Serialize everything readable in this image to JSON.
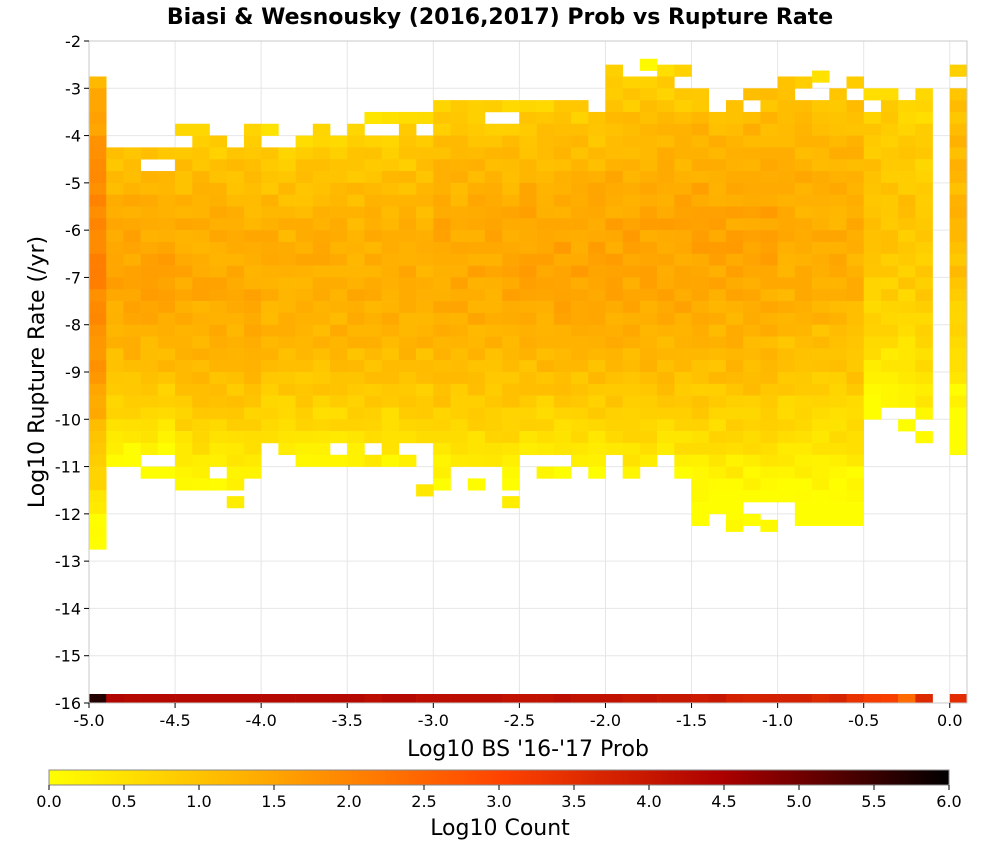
{
  "chart_data": {
    "type": "heatmap",
    "title": "Biasi & Wesnousky (2016,2017) Prob vs Rupture Rate",
    "xlabel": "Log10 BS '16-'17 Prob",
    "ylabel": "Log10 Rupture Rate (/yr)",
    "xlim": [
      -5.0,
      0.1
    ],
    "ylim": [
      -16,
      -2
    ],
    "xticks": [
      "-5.0",
      "-4.5",
      "-4.0",
      "-3.5",
      "-3.0",
      "-2.5",
      "-2.0",
      "-1.5",
      "-1.0",
      "-0.5",
      "0.0"
    ],
    "yticks": [
      "-2",
      "-3",
      "-4",
      "-5",
      "-6",
      "-7",
      "-8",
      "-9",
      "-10",
      "-11",
      "-12",
      "-13",
      "-14",
      "-15",
      "-16"
    ],
    "grid": true,
    "bin_width_x": 0.1,
    "bin_height_y": 0.25,
    "colorbar": {
      "label": "Log10 Count",
      "range": [
        0.0,
        6.0
      ],
      "ticks": [
        "0.0",
        "0.5",
        "1.0",
        "1.5",
        "2.0",
        "2.5",
        "3.0",
        "3.5",
        "4.0",
        "4.5",
        "5.0",
        "5.5",
        "6.0"
      ],
      "colors": [
        "#ffff00",
        "#ffa500",
        "#ff4400",
        "#aa0000",
        "#000000"
      ]
    },
    "zero_row": {
      "y": -16,
      "x_bins": [
        -4.95,
        -4.85,
        -4.75,
        -4.65,
        -4.55,
        -4.45,
        -4.35,
        -4.25,
        -4.15,
        -4.05,
        -3.95,
        -3.85,
        -3.75,
        -3.65,
        -3.55,
        -3.45,
        -3.35,
        -3.25,
        -3.15,
        -3.05,
        -2.95,
        -2.85,
        -2.75,
        -2.65,
        -2.55,
        -2.45,
        -2.35,
        -2.25,
        -2.15,
        -2.05,
        -1.95,
        -1.85,
        -1.75,
        -1.65,
        -1.55,
        -1.45,
        -1.35,
        -1.25,
        -1.15,
        -1.05,
        -0.95,
        -0.85,
        -0.75,
        -0.65,
        -0.55,
        -0.45,
        -0.35,
        -0.25,
        -0.15,
        0.05
      ],
      "values": [
        5.7,
        4.4,
        4.3,
        4.3,
        4.3,
        4.3,
        4.3,
        4.3,
        4.3,
        4.3,
        4.3,
        4.3,
        4.3,
        4.3,
        4.3,
        4.3,
        4.2,
        4.3,
        4.3,
        4.2,
        4.2,
        4.2,
        4.2,
        4.2,
        4.1,
        4.1,
        4.1,
        4.2,
        4.1,
        4.1,
        4.1,
        4.0,
        4.1,
        4.0,
        4.0,
        3.9,
        4.0,
        3.8,
        3.7,
        3.8,
        3.8,
        3.8,
        3.6,
        3.7,
        3.4,
        3.2,
        3.1,
        2.4,
        3.6,
        3.5
      ]
    },
    "profile": [
      {
        "x_from": -5.0,
        "x_to": -4.9,
        "y_min": -12.75,
        "y_max": -2.75,
        "peak_y": -6.5,
        "peak": 2.0
      },
      {
        "x_from": -4.9,
        "x_to": -4.5,
        "y_min": -11.25,
        "y_max": -4.25,
        "peak_y": -6.8,
        "peak": 1.5
      },
      {
        "x_from": -4.5,
        "x_to": -4.0,
        "y_min": -11.5,
        "y_max": -3.75,
        "peak_y": -7.0,
        "peak": 1.4
      },
      {
        "x_from": -4.0,
        "x_to": -3.5,
        "y_min": -11.0,
        "y_max": -3.75,
        "peak_y": -7.0,
        "peak": 1.35
      },
      {
        "x_from": -3.5,
        "x_to": -3.0,
        "y_min": -11.0,
        "y_max": -3.5,
        "peak_y": -6.9,
        "peak": 1.35
      },
      {
        "x_from": -3.0,
        "x_to": -2.5,
        "y_min": -11.5,
        "y_max": -3.25,
        "peak_y": -6.7,
        "peak": 1.45
      },
      {
        "x_from": -2.5,
        "x_to": -2.0,
        "y_min": -11.25,
        "y_max": -3.25,
        "peak_y": -6.6,
        "peak": 1.5
      },
      {
        "x_from": -2.0,
        "x_to": -1.5,
        "y_min": -11.25,
        "y_max": -2.5,
        "peak_y": -6.4,
        "peak": 1.5
      },
      {
        "x_from": -1.5,
        "x_to": -1.0,
        "y_min": -12.25,
        "y_max": -3.0,
        "peak_y": -6.2,
        "peak": 1.5
      },
      {
        "x_from": -1.0,
        "x_to": -0.5,
        "y_min": -12.25,
        "y_max": -2.75,
        "peak_y": -6.0,
        "peak": 1.35
      },
      {
        "x_from": -0.5,
        "x_to": -0.2,
        "y_min": -10.25,
        "y_max": -3.0,
        "peak_y": -5.5,
        "peak": 1.0
      },
      {
        "x_from": -0.2,
        "x_to": -0.1,
        "y_min": -10.5,
        "y_max": -3.0,
        "peak_y": -6.0,
        "peak": 0.9
      },
      {
        "x_from": 0.0,
        "x_to": 0.1,
        "y_min": -10.75,
        "y_max": -2.5,
        "peak_y": -5.0,
        "peak": 1.2
      }
    ],
    "outliers": [
      {
        "x": -1.75,
        "y": -2.5,
        "value": 0.1
      },
      {
        "x": -1.05,
        "y": -12.25,
        "value": 0.1
      },
      {
        "x": -1.25,
        "y": -12.25,
        "value": 0.1
      },
      {
        "x": -4.15,
        "y": -11.75,
        "value": 0.3
      },
      {
        "x": -2.55,
        "y": -11.75,
        "value": 0.3
      },
      {
        "x": -3.05,
        "y": -11.5,
        "value": 0.4
      },
      {
        "x": -0.75,
        "y": -2.75,
        "value": 0.5
      }
    ]
  }
}
